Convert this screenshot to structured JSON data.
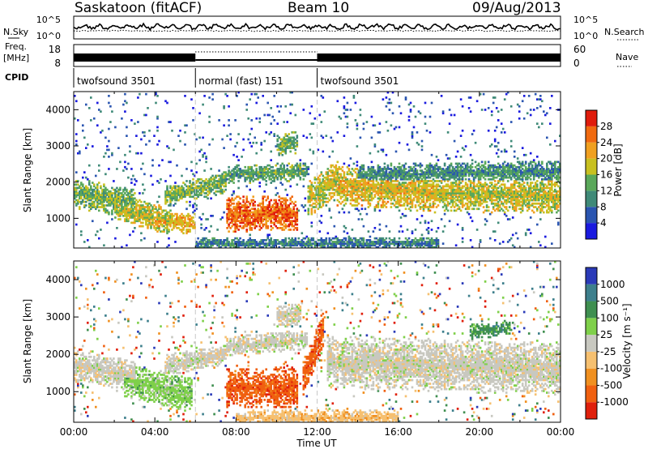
{
  "header": {
    "station": "Saskatoon (fitACF)",
    "beam": "Beam 10",
    "date": "09/Aug/2013"
  },
  "panel_labels": {
    "nsky": "N.Sky",
    "nsearch": "N.Search",
    "freq_line1": "Freq.",
    "freq_line2": "[MHz]",
    "nave": "Nave",
    "cpid": "CPID"
  },
  "noise_axis": {
    "left_top": "10^5",
    "left_bottom": "10^0",
    "right_top": "10^5",
    "right_bottom": "10^0"
  },
  "freq_axis": {
    "left_top": "18",
    "left_bottom": "8",
    "right_top": "60",
    "right_bottom": "0"
  },
  "cpid_segments": [
    {
      "label": "twofsound 3501",
      "start_hour": 0,
      "end_hour": 6
    },
    {
      "label": "normal (fast) 151",
      "start_hour": 6,
      "end_hour": 12
    },
    {
      "label": "twofsound 3501",
      "start_hour": 12,
      "end_hour": 24
    }
  ],
  "chart_data": [
    {
      "type": "heatmap",
      "name": "power",
      "xlabel": "Time UT",
      "ylabel": "Slant Range [km]",
      "xlim": [
        0,
        24
      ],
      "ylim": [
        180,
        4500
      ],
      "x_ticks": [
        "00:00",
        "04:00",
        "08:00",
        "12:00",
        "16:00",
        "20:00",
        "00:00"
      ],
      "y_ticks": [
        1000,
        2000,
        3000,
        4000
      ],
      "colorbar": {
        "label": "Power [dB]",
        "range": [
          0,
          32
        ],
        "ticks": [
          4,
          8,
          12,
          16,
          20,
          24,
          28
        ],
        "colors": [
          "#1a1adf",
          "#2a55b0",
          "#3f8a78",
          "#5aa85a",
          "#c8c020",
          "#f0a020",
          "#f06a10",
          "#e01c0c"
        ]
      },
      "bands": [
        {
          "t0": 0.0,
          "t1": 3.0,
          "r0": 1700,
          "r1": 1400,
          "w": 420,
          "v": 14
        },
        {
          "t0": 2.0,
          "t1": 4.8,
          "r0": 1300,
          "r1": 900,
          "w": 380,
          "v": 18
        },
        {
          "t0": 4.0,
          "t1": 6.0,
          "r0": 950,
          "r1": 850,
          "w": 300,
          "v": 22
        },
        {
          "t0": 4.5,
          "t1": 7.5,
          "r0": 1600,
          "r1": 2000,
          "w": 300,
          "v": 14
        },
        {
          "t0": 7.5,
          "t1": 11.0,
          "r0": 1100,
          "r1": 1100,
          "w": 500,
          "v": 28
        },
        {
          "t0": 7.5,
          "t1": 11.5,
          "r0": 2200,
          "r1": 2300,
          "w": 250,
          "v": 12
        },
        {
          "t0": 10.0,
          "t1": 11.0,
          "r0": 3000,
          "r1": 3100,
          "w": 300,
          "v": 14
        },
        {
          "t0": 11.5,
          "t1": 13.0,
          "r0": 1500,
          "r1": 2100,
          "w": 500,
          "v": 18
        },
        {
          "t0": 13.0,
          "t1": 18.0,
          "r0": 1900,
          "r1": 1700,
          "w": 550,
          "v": 20
        },
        {
          "t0": 18.0,
          "t1": 24.0,
          "r0": 1700,
          "r1": 1600,
          "w": 500,
          "v": 18
        },
        {
          "t0": 14.0,
          "t1": 24.0,
          "r0": 2200,
          "r1": 2300,
          "w": 300,
          "v": 10
        },
        {
          "t0": 6.0,
          "t1": 18.0,
          "r0": 300,
          "r1": 300,
          "w": 180,
          "v": 8
        }
      ]
    },
    {
      "type": "heatmap",
      "name": "velocity",
      "xlabel": "Time UT",
      "ylabel": "Slant Range [km]",
      "xlim": [
        0,
        24
      ],
      "ylim": [
        180,
        4500
      ],
      "x_ticks": [
        "00:00",
        "04:00",
        "08:00",
        "12:00",
        "16:00",
        "20:00",
        "00:00"
      ],
      "y_ticks": [
        1000,
        2000,
        3000,
        4000
      ],
      "colorbar": {
        "label": "Velocity [m s⁻¹]",
        "range": [
          -1500,
          1500
        ],
        "ticks": [
          "1000",
          "500",
          "100",
          "25",
          "-25",
          "-100",
          "-500",
          "-1000"
        ],
        "colors": [
          "#2a3ab8",
          "#3d7f8c",
          "#3f8f50",
          "#7fd04a",
          "#c8c8c0",
          "#f6c070",
          "#f09020",
          "#f06010",
          "#e0200c"
        ]
      },
      "bands": [
        {
          "t0": 0.0,
          "t1": 3.0,
          "r0": 1700,
          "r1": 1400,
          "w": 420,
          "c": 4
        },
        {
          "t0": 2.5,
          "t1": 5.8,
          "r0": 1300,
          "r1": 900,
          "w": 450,
          "c": 3
        },
        {
          "t0": 4.5,
          "t1": 7.5,
          "r0": 1700,
          "r1": 2000,
          "w": 280,
          "c": 4
        },
        {
          "t0": 7.5,
          "t1": 11.0,
          "r0": 1100,
          "r1": 1100,
          "w": 550,
          "c": 7
        },
        {
          "t0": 7.5,
          "t1": 11.5,
          "r0": 2200,
          "r1": 2400,
          "w": 260,
          "c": 4
        },
        {
          "t0": 10.0,
          "t1": 11.2,
          "r0": 3000,
          "r1": 3100,
          "w": 300,
          "c": 4
        },
        {
          "t0": 11.3,
          "t1": 12.3,
          "r0": 1300,
          "r1": 2700,
          "w": 500,
          "c": 7
        },
        {
          "t0": 12.5,
          "t1": 24.0,
          "r0": 1800,
          "r1": 1600,
          "w": 700,
          "c": 4
        },
        {
          "t0": 19.5,
          "t1": 21.5,
          "r0": 2600,
          "r1": 2700,
          "w": 200,
          "c": 2
        },
        {
          "t0": 8.0,
          "t1": 16.0,
          "r0": 300,
          "r1": 300,
          "w": 200,
          "c": 5
        }
      ]
    }
  ]
}
